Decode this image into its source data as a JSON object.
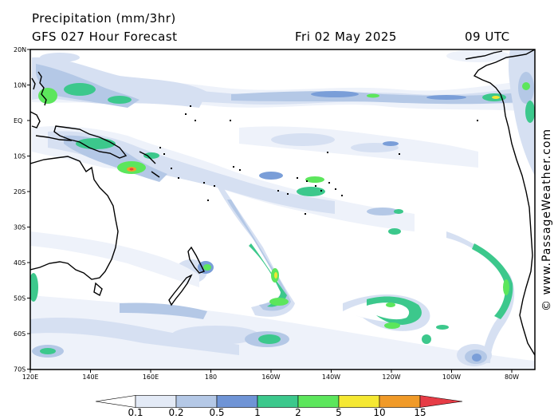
{
  "header": {
    "title": "Precipitation (mm/3hr)",
    "model": "GFS 027 Hour Forecast",
    "date": "Fri 02 May 2025",
    "time": "09 UTC"
  },
  "watermark": "© www.PassageWeather.com",
  "map": {
    "lat_labels": [
      "20N",
      "10N",
      "EQ",
      "10S",
      "20S",
      "30S",
      "40S",
      "50S",
      "60S",
      "70S"
    ],
    "lon_labels": [
      "120E",
      "140E",
      "160E",
      "180",
      "160W",
      "140W",
      "120W",
      "100W",
      "80W"
    ],
    "colors": {
      "land_outline": "#000000",
      "very_light": "#eef2fa",
      "light": "#d6e0f2",
      "mid": "#b4c8e6",
      "blue": "#7a9ed8",
      "teal": "#3cc88c",
      "green": "#5ce65c",
      "yellow": "#f0e632",
      "orange": "#f0a028",
      "red": "#e63c46"
    }
  },
  "legend": {
    "values": [
      "0.1",
      "0.2",
      "0.5",
      "1",
      "2",
      "5",
      "10",
      "15"
    ],
    "colors": [
      "#ffffff",
      "#e3eaf6",
      "#b4c8e6",
      "#6f94d6",
      "#3cc88c",
      "#5ce65c",
      "#f5e832",
      "#f09a28",
      "#e63c46"
    ]
  }
}
